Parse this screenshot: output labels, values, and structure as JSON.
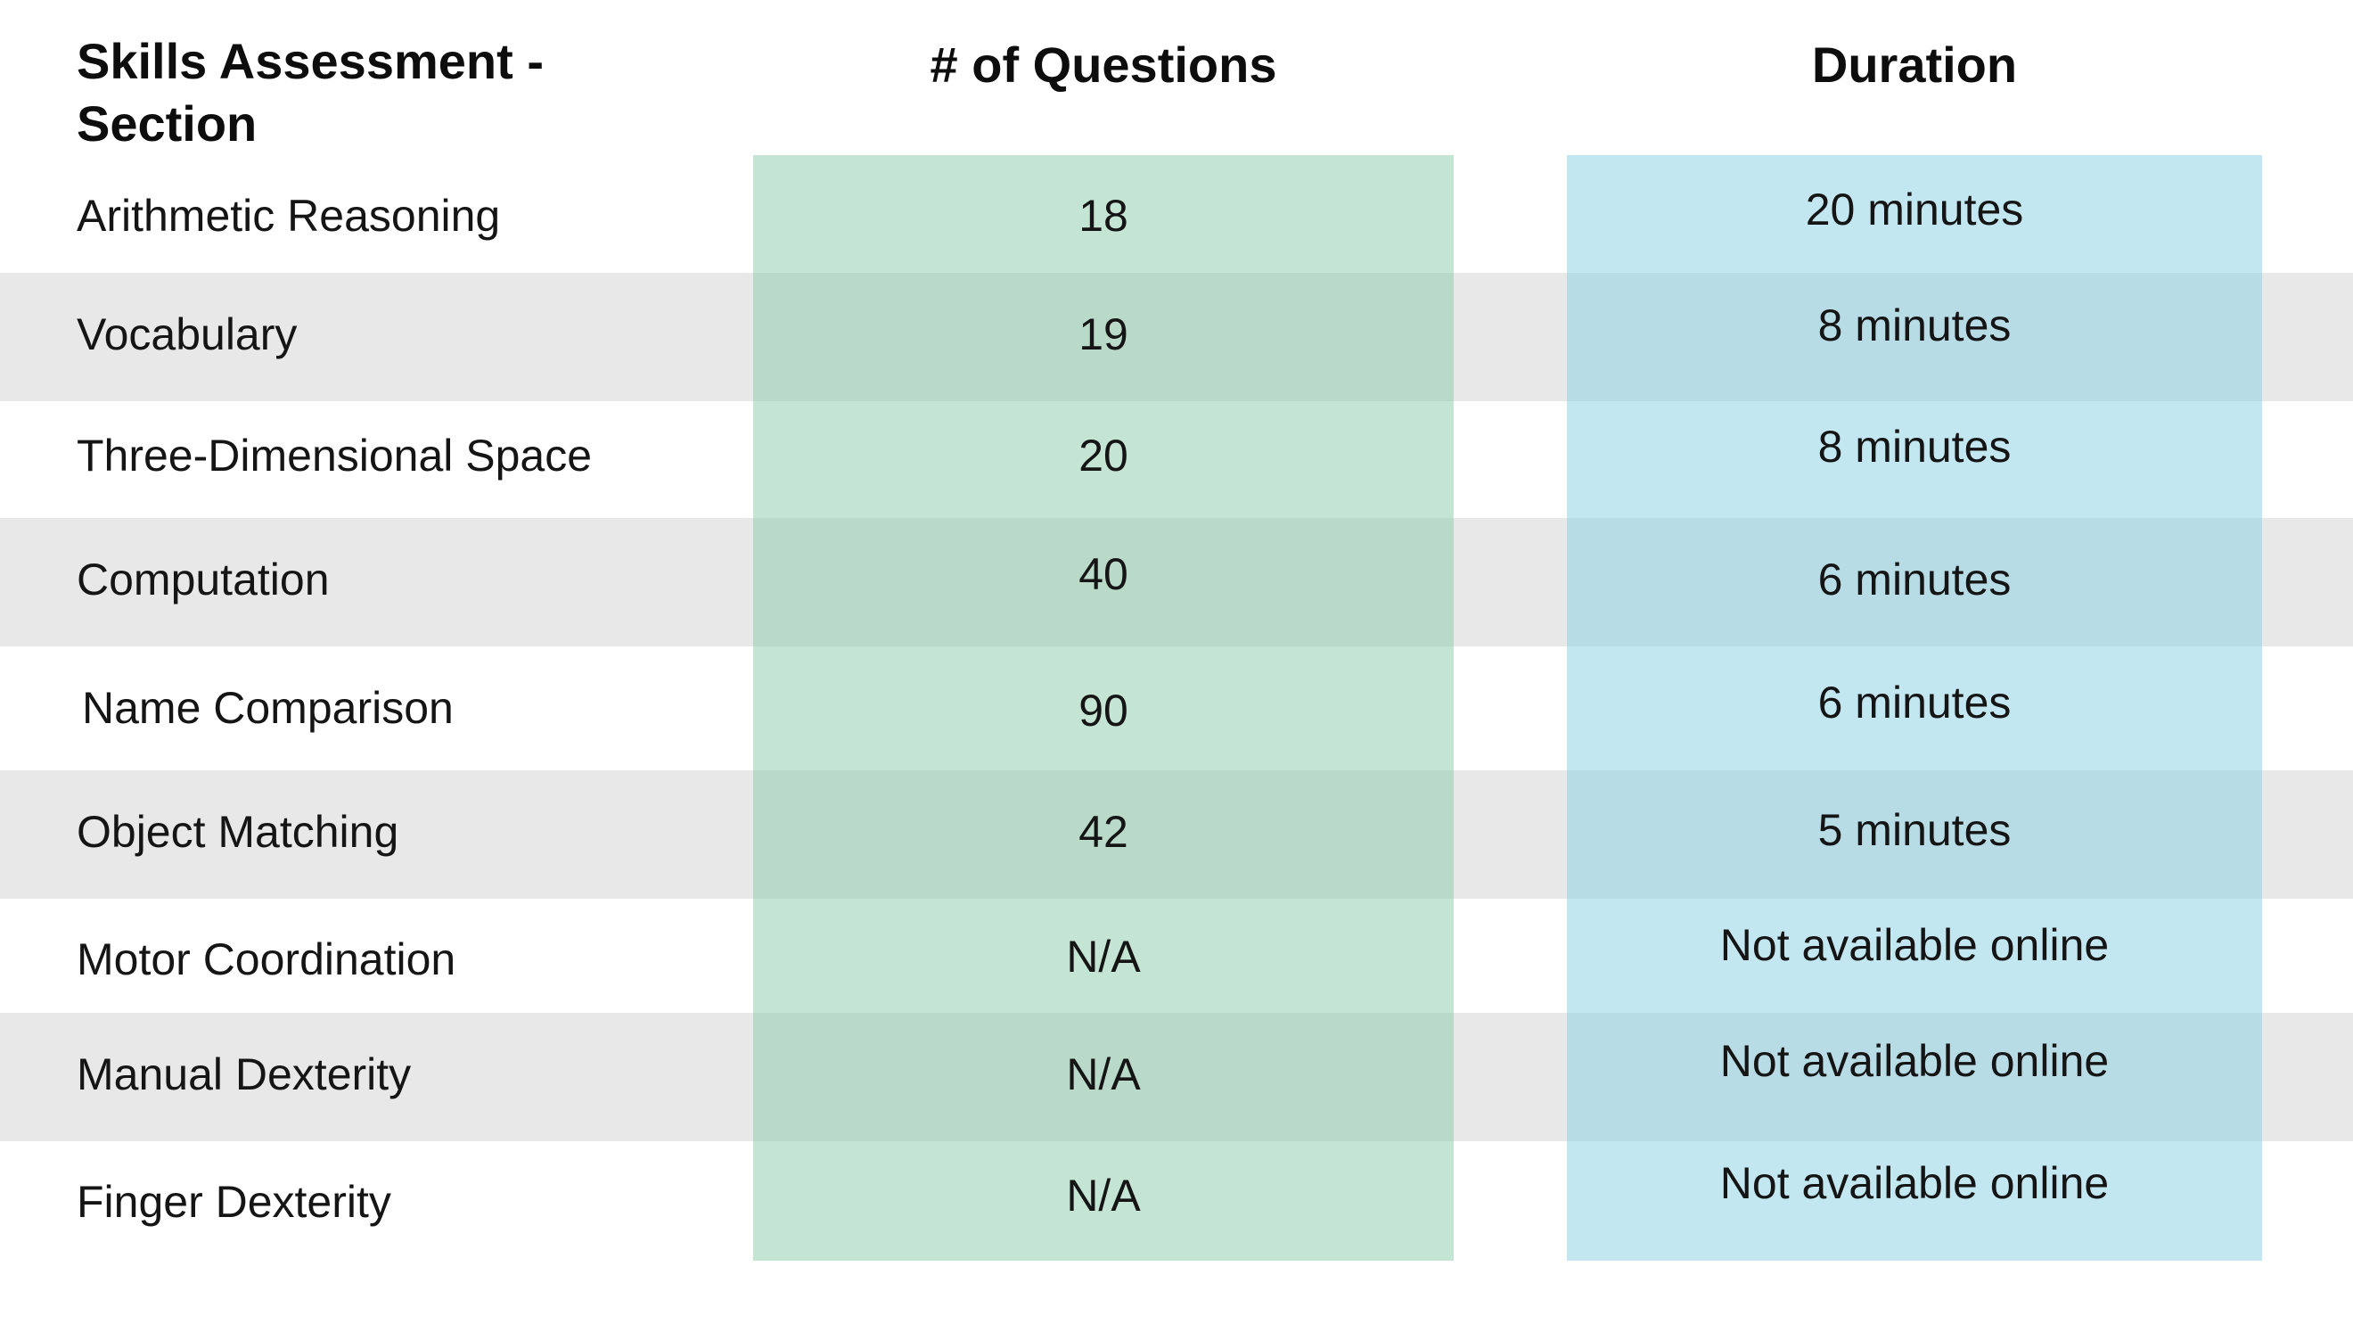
{
  "table": {
    "headers": {
      "section": "Skills Assessment - Section",
      "questions": "# of Questions",
      "duration": "Duration"
    },
    "rows": [
      {
        "section": "Arithmetic Reasoning",
        "questions": "18",
        "duration": "20 minutes"
      },
      {
        "section": "Vocabulary",
        "questions": "19",
        "duration": "8 minutes"
      },
      {
        "section": "Three-Dimensional Space",
        "questions": "20",
        "duration": "8 minutes"
      },
      {
        "section": "Computation",
        "questions": "40",
        "duration": "6 minutes"
      },
      {
        "section": "Name Comparison",
        "questions": "90",
        "duration": "6 minutes"
      },
      {
        "section": "Object Matching",
        "questions": "42",
        "duration": "5 minutes"
      },
      {
        "section": "Motor Coordination",
        "questions": "N/A",
        "duration": "Not available online"
      },
      {
        "section": "Manual Dexterity",
        "questions": "N/A",
        "duration": "Not available online"
      },
      {
        "section": "Finger Dexterity",
        "questions": "N/A",
        "duration": "Not available online"
      }
    ]
  },
  "colors": {
    "band_gray": "#e8e8e8",
    "questions_column": "#c5e6d6",
    "duration_column": "#c5e9f1",
    "text": "#111111"
  }
}
